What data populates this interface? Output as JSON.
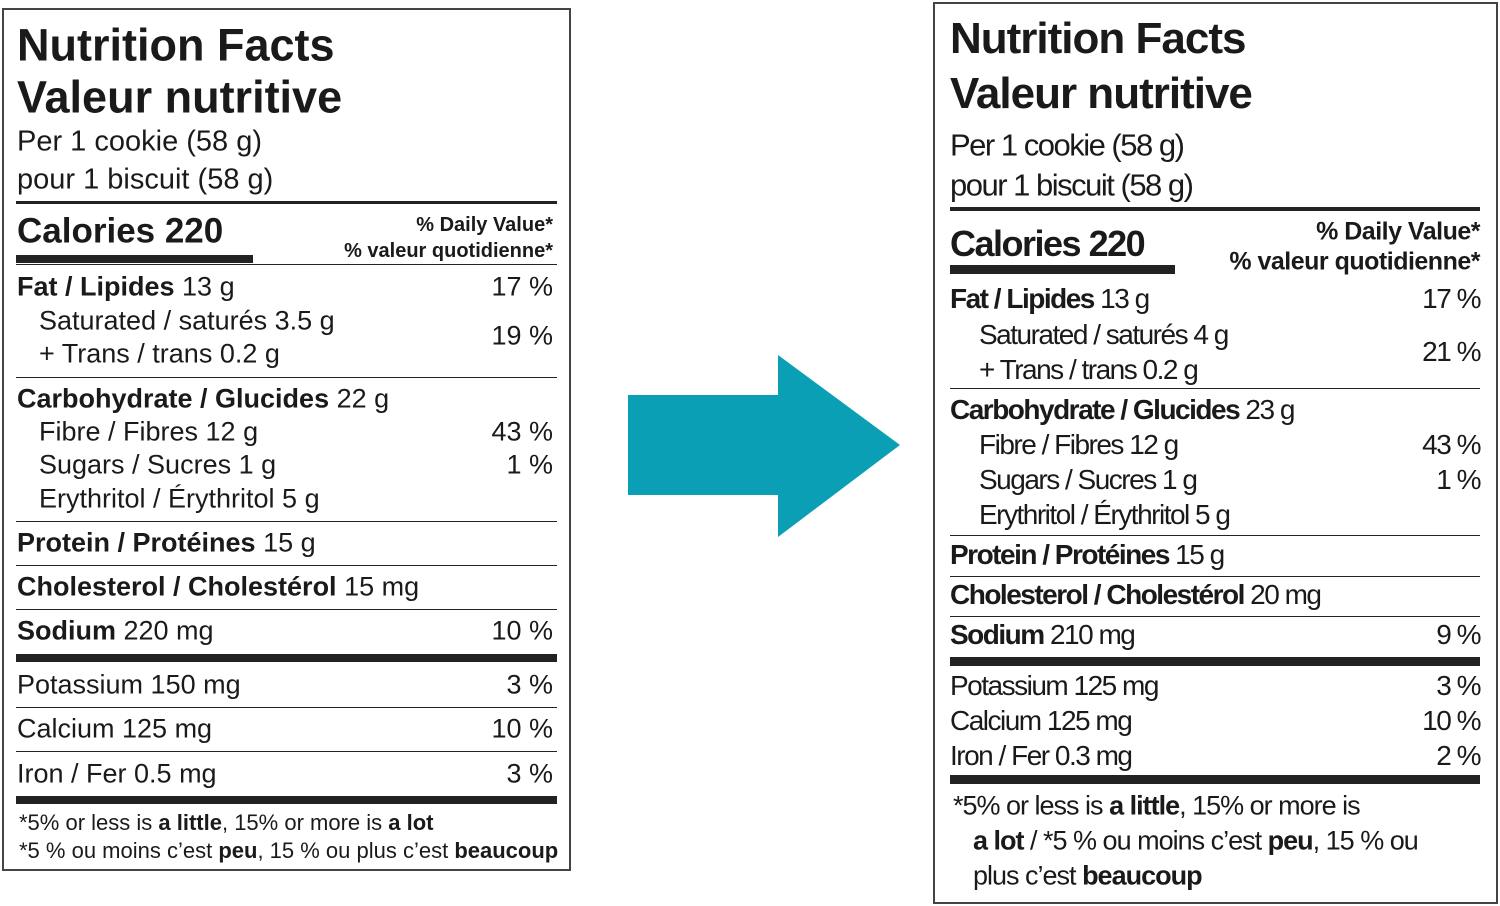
{
  "arrow_color": "#0a9fb5",
  "left": {
    "title_en": "Nutrition Facts",
    "title_fr": "Valeur nutritive",
    "serving_en": "Per 1 cookie (58 g)",
    "serving_fr": "pour 1 biscuit (58 g)",
    "calories": "Calories 220",
    "dv_en": "% Daily Value*",
    "dv_fr": "% valeur quotidienne*",
    "fat": {
      "label": "Fat / Lipides",
      "amount": " 13 g",
      "dv": "17 %"
    },
    "saturated": "Saturated / saturés 3.5 g",
    "trans": "+ Trans / trans 0.2 g",
    "sat_trans_dv": "19 %",
    "carb": {
      "label": "Carbohydrate / Glucides",
      "amount": " 22 g"
    },
    "fibre": {
      "label": "Fibre / Fibres 12 g",
      "dv": "43 %"
    },
    "sugars": {
      "label": "Sugars / Sucres 1 g",
      "dv": "1 %"
    },
    "erythritol": "Erythritol / Érythritol 5 g",
    "protein": {
      "label": "Protein / Protéines",
      "amount": " 15 g"
    },
    "cholesterol": {
      "label": "Cholesterol / Cholestérol",
      "amount": " 15 mg"
    },
    "sodium": {
      "label": "Sodium",
      "amount": " 220 mg",
      "dv": "10 %"
    },
    "potassium": {
      "label": "Potassium 150 mg",
      "dv": "3 %"
    },
    "calcium": {
      "label": "Calcium 125 mg",
      "dv": "10 %"
    },
    "iron": {
      "label": "Iron / Fer 0.5 mg",
      "dv": "3 %"
    },
    "footnote": {
      "l1": [
        "*5% or less is ",
        "a little",
        ", 15% or more is ",
        "a lot"
      ],
      "l2": [
        "*5 % ou moins c’est ",
        "peu",
        ", 15 % ou plus c’est ",
        "beaucoup"
      ]
    }
  },
  "right": {
    "title_en": "Nutrition Facts",
    "title_fr": "Valeur nutritive",
    "serving_en": "Per 1 cookie (58 g)",
    "serving_fr": "pour 1 biscuit (58 g)",
    "calories": "Calories 220",
    "dv_en": "% Daily Value*",
    "dv_fr": "% valeur quotidienne*",
    "fat": {
      "label": "Fat / Lipides",
      "amount": " 13 g",
      "dv": "17 %"
    },
    "saturated": "Saturated / saturés 4 g",
    "trans": "+ Trans / trans 0.2 g",
    "sat_trans_dv": "21 %",
    "carb": {
      "label": "Carbohydrate / Glucides",
      "amount": " 23 g"
    },
    "fibre": {
      "label": "Fibre / Fibres 12 g",
      "dv": "43 %"
    },
    "sugars": {
      "label": "Sugars / Sucres 1 g",
      "dv": "1 %"
    },
    "erythritol": "Erythritol / Érythritol 5 g",
    "protein": {
      "label": "Protein / Protéines",
      "amount": " 15 g"
    },
    "cholesterol": {
      "label": "Cholesterol / Cholestérol",
      "amount": " 20 mg"
    },
    "sodium": {
      "label": "Sodium",
      "amount": " 210 mg",
      "dv": "9 %"
    },
    "potassium": {
      "label": "Potassium 125 mg",
      "dv": "3 %"
    },
    "calcium": {
      "label": "Calcium 125 mg",
      "dv": "10 %"
    },
    "iron": {
      "label": "Iron / Fer 0.3 mg",
      "dv": "2 %"
    },
    "footnote": {
      "l1": [
        "*5% or less is ",
        "a little",
        ", 15% or more is"
      ],
      "l2": [
        "a lot",
        " / *5 % ou moins c’est ",
        "peu",
        ", 15 % ou"
      ],
      "l3": [
        "plus c’est ",
        "beaucoup"
      ]
    }
  }
}
